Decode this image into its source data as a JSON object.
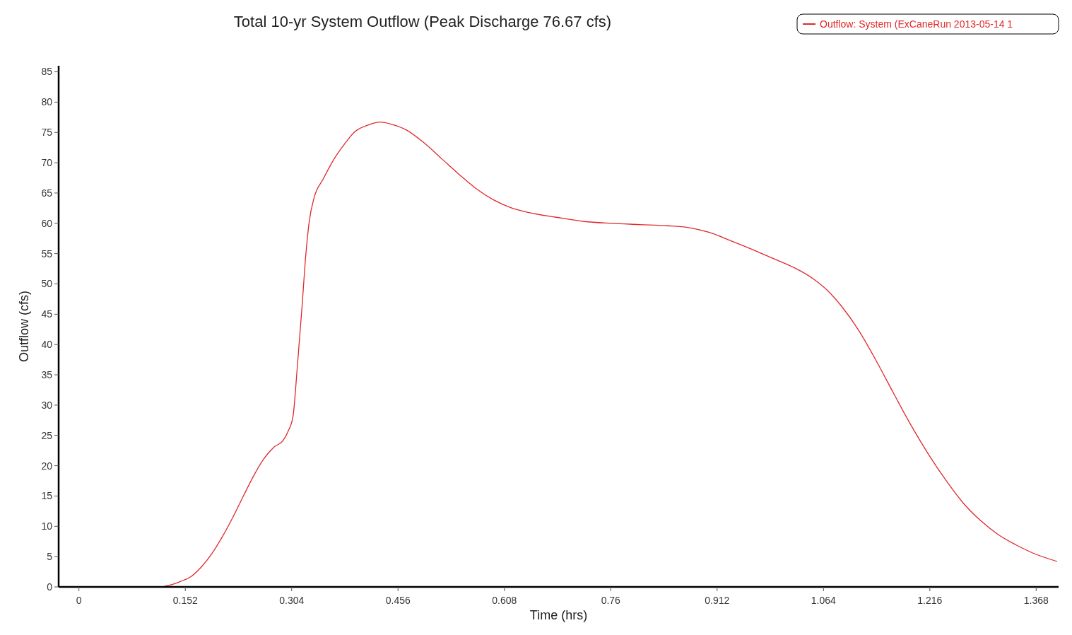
{
  "chart_data": {
    "type": "line",
    "title": "Total 10-yr System Outflow (Peak Discharge 76.67 cfs)",
    "xlabel": "Time (hrs)",
    "ylabel": "Outflow (cfs)",
    "xlim": [
      -0.029,
      1.4
    ],
    "ylim": [
      0,
      86
    ],
    "xticks": [
      0,
      0.152,
      0.304,
      0.456,
      0.608,
      0.76,
      0.912,
      1.064,
      1.216,
      1.368
    ],
    "yticks": [
      0,
      5,
      10,
      15,
      20,
      25,
      30,
      35,
      40,
      45,
      50,
      55,
      60,
      65,
      70,
      75,
      80,
      85
    ],
    "grid": false,
    "legend": "top right",
    "marker": "none",
    "line_style": "solid",
    "series": [
      {
        "name": "Outflow: System (ExCaneRun 2013-05-14 1",
        "color": "#e0282a",
        "x": [
          0.122,
          0.13,
          0.145,
          0.16,
          0.175,
          0.19,
          0.205,
          0.22,
          0.235,
          0.25,
          0.264,
          0.279,
          0.292,
          0.299,
          0.306,
          0.312,
          0.319,
          0.324,
          0.329,
          0.336,
          0.349,
          0.364,
          0.379,
          0.394,
          0.413,
          0.43,
          0.448,
          0.468,
          0.493,
          0.518,
          0.543,
          0.568,
          0.592,
          0.617,
          0.642,
          0.682,
          0.722,
          0.761,
          0.801,
          0.841,
          0.871,
          0.901,
          0.93,
          0.96,
          0.99,
          1.02,
          1.05,
          1.07,
          1.09,
          1.114,
          1.139,
          1.164,
          1.189,
          1.214,
          1.239,
          1.264,
          1.289,
          1.313,
          1.338,
          1.363,
          1.398
        ],
        "values": [
          0.1,
          0.3,
          0.9,
          1.7,
          3.3,
          5.5,
          8.3,
          11.5,
          15,
          18.4,
          21.1,
          23.1,
          24.2,
          25.7,
          28.2,
          36.2,
          46.5,
          54.5,
          60.2,
          64.2,
          67.3,
          70.5,
          73,
          75.1,
          76.2,
          76.7,
          76.3,
          75.4,
          73.3,
          70.7,
          68.1,
          65.7,
          63.9,
          62.6,
          61.8,
          61,
          60.3,
          60,
          59.8,
          59.6,
          59.3,
          58.5,
          57.2,
          55.8,
          54.3,
          52.8,
          50.8,
          48.9,
          46.3,
          42.4,
          37.4,
          32,
          26.7,
          21.9,
          17.6,
          13.8,
          10.9,
          8.7,
          7,
          5.6,
          4.2
        ]
      }
    ]
  }
}
